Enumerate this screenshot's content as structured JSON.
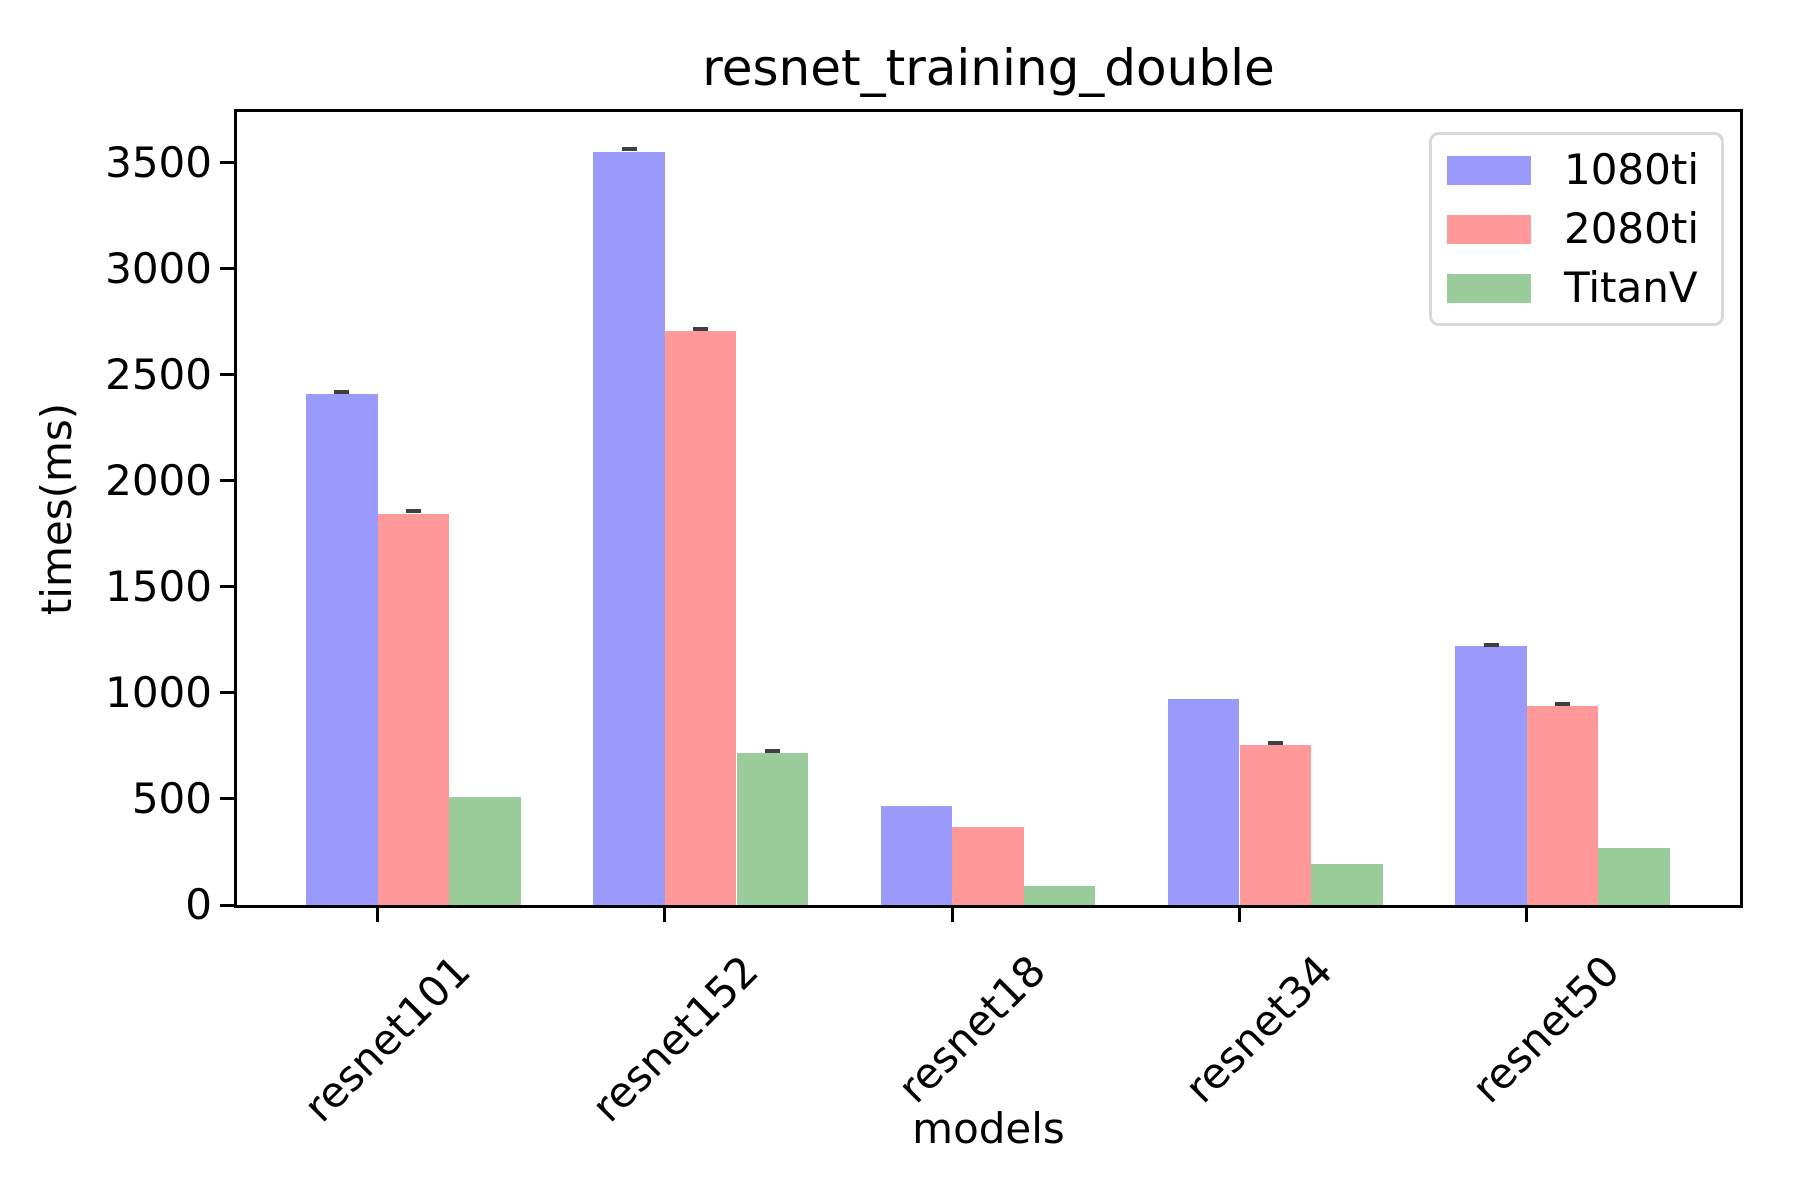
{
  "chart_data": {
    "type": "bar",
    "title": "resnet_training_double",
    "xlabel": "models",
    "ylabel": "times(ms)",
    "categories": [
      "resnet101",
      "resnet152",
      "resnet18",
      "resnet34",
      "resnet50"
    ],
    "series": [
      {
        "name": "1080ti",
        "color": "#9a9afa",
        "values": [
          2410,
          3553,
          465,
          973,
          1220
        ],
        "errors": [
          10,
          12,
          0,
          0,
          8
        ]
      },
      {
        "name": "2080ti",
        "color": "#ff9999",
        "values": [
          1845,
          2707,
          368,
          755,
          939
        ],
        "errors": [
          12,
          10,
          0,
          10,
          10
        ]
      },
      {
        "name": "TitanV",
        "color": "#9acb9a",
        "values": [
          507,
          717,
          88,
          193,
          268
        ],
        "errors": [
          0,
          10,
          0,
          0,
          0
        ]
      }
    ],
    "ylim": [
      0,
      3740
    ],
    "yticks": [
      0,
      500,
      1000,
      1500,
      2000,
      2500,
      3000,
      3500
    ],
    "legend_position": "upper right",
    "grid": false,
    "error_cap_color": "#3f3f3f"
  }
}
